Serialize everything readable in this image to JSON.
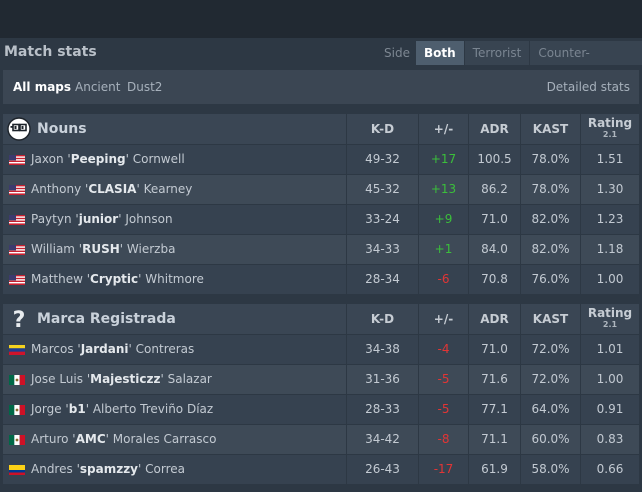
{
  "header": {
    "title": "Match stats",
    "side_label": "Side",
    "side_options": [
      "Both",
      "Terrorist",
      "Counter-Terrorist"
    ],
    "side_selected": "Both"
  },
  "maps": {
    "items": [
      "All maps",
      "Ancient",
      "Dust2"
    ],
    "selected": "All maps",
    "detailed_stats": "Detailed stats"
  },
  "columns": {
    "kd": "K-D",
    "plus_minus": "+/-",
    "adr": "ADR",
    "kast": "KAST",
    "rating": "Rating",
    "rating_version": "2.1"
  },
  "teams": [
    {
      "name": "Nouns",
      "logo": "nouns-glasses-logo",
      "players": [
        {
          "first": "Jaxon",
          "nick": "Peeping",
          "last": "Cornwell",
          "flag": "us-flag",
          "kd": "49-32",
          "pm": "+17",
          "adr": "100.5",
          "kast": "78.0%",
          "rating": "1.51"
        },
        {
          "first": "Anthony",
          "nick": "CLASIA",
          "last": "Kearney",
          "flag": "us-flag",
          "kd": "45-32",
          "pm": "+13",
          "adr": "86.2",
          "kast": "78.0%",
          "rating": "1.30"
        },
        {
          "first": "Paytyn",
          "nick": "junior",
          "last": "Johnson",
          "flag": "us-flag",
          "kd": "33-24",
          "pm": "+9",
          "adr": "71.0",
          "kast": "82.0%",
          "rating": "1.23"
        },
        {
          "first": "William",
          "nick": "RUSH",
          "last": "Wierzba",
          "flag": "us-flag",
          "kd": "34-33",
          "pm": "+1",
          "adr": "84.0",
          "kast": "82.0%",
          "rating": "1.18"
        },
        {
          "first": "Matthew",
          "nick": "Cryptic",
          "last": "Whitmore",
          "flag": "us-flag",
          "kd": "28-34",
          "pm": "-6",
          "adr": "70.8",
          "kast": "76.0%",
          "rating": "1.00"
        }
      ]
    },
    {
      "name": "Marca Registrada",
      "logo": "question-mark-logo",
      "players": [
        {
          "first": "Marcos",
          "nick": "Jardani",
          "last": "Contreras",
          "flag": "venezuela-flag",
          "kd": "34-38",
          "pm": "-4",
          "adr": "71.0",
          "kast": "72.0%",
          "rating": "1.01"
        },
        {
          "first": "Jose Luis",
          "nick": "Majesticzz",
          "last": "Salazar",
          "flag": "mexico-flag",
          "kd": "31-36",
          "pm": "-5",
          "adr": "71.6",
          "kast": "72.0%",
          "rating": "1.00"
        },
        {
          "first": "Jorge",
          "nick": "b1",
          "last": "Alberto Treviño Díaz",
          "flag": "mexico-flag",
          "kd": "28-33",
          "pm": "-5",
          "adr": "77.1",
          "kast": "64.0%",
          "rating": "0.91"
        },
        {
          "first": "Arturo",
          "nick": "AMC",
          "last": "Morales Carrasco",
          "flag": "mexico-flag",
          "kd": "34-42",
          "pm": "-8",
          "adr": "71.1",
          "kast": "60.0%",
          "rating": "0.83"
        },
        {
          "first": "Andres",
          "nick": "spamzzy",
          "last": "Correa",
          "flag": "colombia-flag",
          "kd": "26-43",
          "pm": "-17",
          "adr": "61.9",
          "kast": "58.0%",
          "rating": "0.66"
        }
      ]
    }
  ],
  "colors": {
    "positive": "#3bbf3b",
    "negative": "#e23535",
    "background": "#2d3844",
    "header_bg": "#3a4654"
  }
}
